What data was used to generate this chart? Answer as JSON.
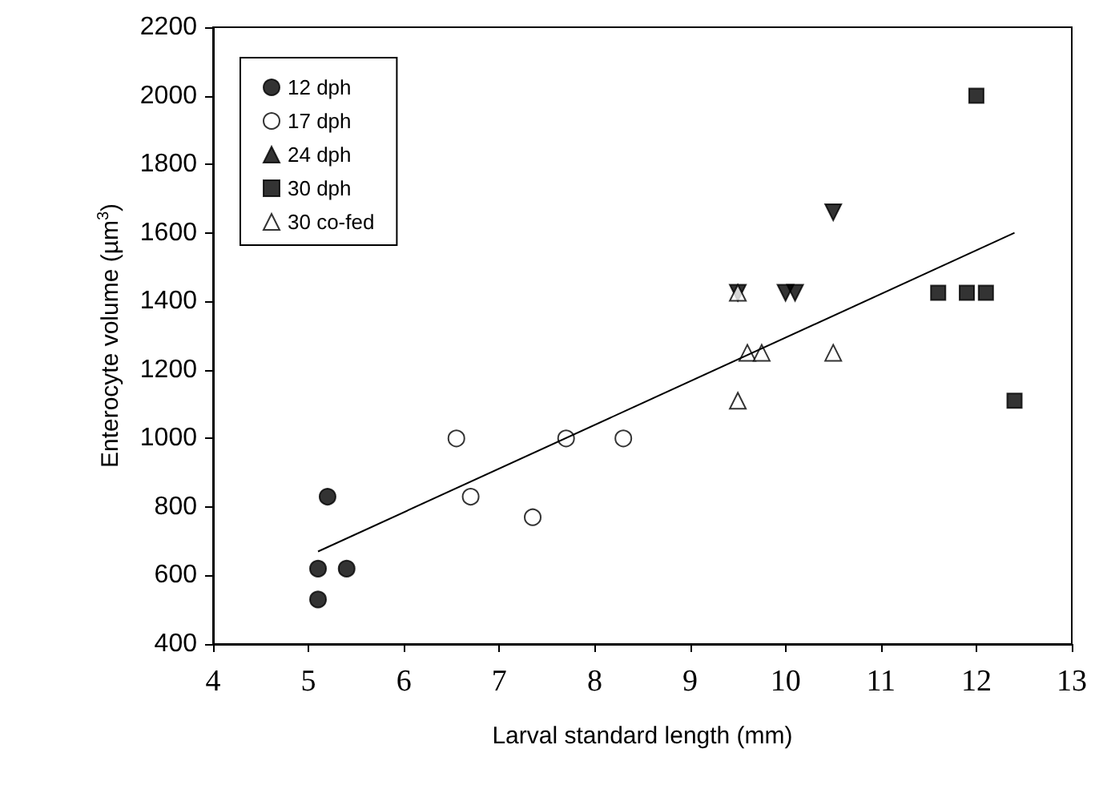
{
  "chart_data": {
    "type": "scatter",
    "xlabel": "Larval standard length (mm)",
    "ylabel": "Enterocyte volume (µm$^{3}$)",
    "xlim": [
      4,
      13
    ],
    "xticks": [
      4,
      5,
      6,
      7,
      8,
      9,
      10,
      11,
      12,
      13
    ],
    "ylim": [
      400,
      2200
    ],
    "yticks": [
      400,
      600,
      800,
      1000,
      1200,
      1400,
      1600,
      1800,
      2000,
      2200
    ],
    "grid": false,
    "legend": "top left",
    "series": [
      {
        "name": "12 dph",
        "color": "#000000",
        "marker": "circle",
        "x": [
          5.1,
          5.2,
          5.4,
          5.1
        ],
        "values": [
          620,
          830,
          620,
          530
        ]
      },
      {
        "name": "17 dph",
        "color": "#ffffff",
        "marker": "circle",
        "x": [
          6.55,
          6.7,
          7.35,
          7.7,
          8.3
        ],
        "values": [
          1000,
          830,
          770,
          1000,
          1000
        ]
      },
      {
        "name": "24 dph",
        "color": "#000000",
        "marker": "triangle-down",
        "x": [
          9.5,
          10.0,
          10.1,
          10.5
        ],
        "values": [
          1425,
          1425,
          1425,
          1660
        ]
      },
      {
        "name": "30 dph",
        "color": "#000000",
        "marker": "square",
        "x": [
          11.6,
          11.9,
          12.1,
          12.4,
          12.0
        ],
        "values": [
          1425,
          1425,
          1425,
          1110,
          2000
        ]
      },
      {
        "name": "30 co-fed",
        "color": "#ffffff",
        "marker": "triangle",
        "x": [
          9.5,
          9.6,
          9.75,
          10.5,
          9.5
        ],
        "values": [
          1425,
          1250,
          1250,
          1250,
          1110
        ]
      },
      {
        "type": "line",
        "color": "#000000",
        "marker": "none",
        "line_style": "solid",
        "x": [
          5.1,
          12.4
        ],
        "values": [
          670,
          1600
        ]
      }
    ]
  }
}
